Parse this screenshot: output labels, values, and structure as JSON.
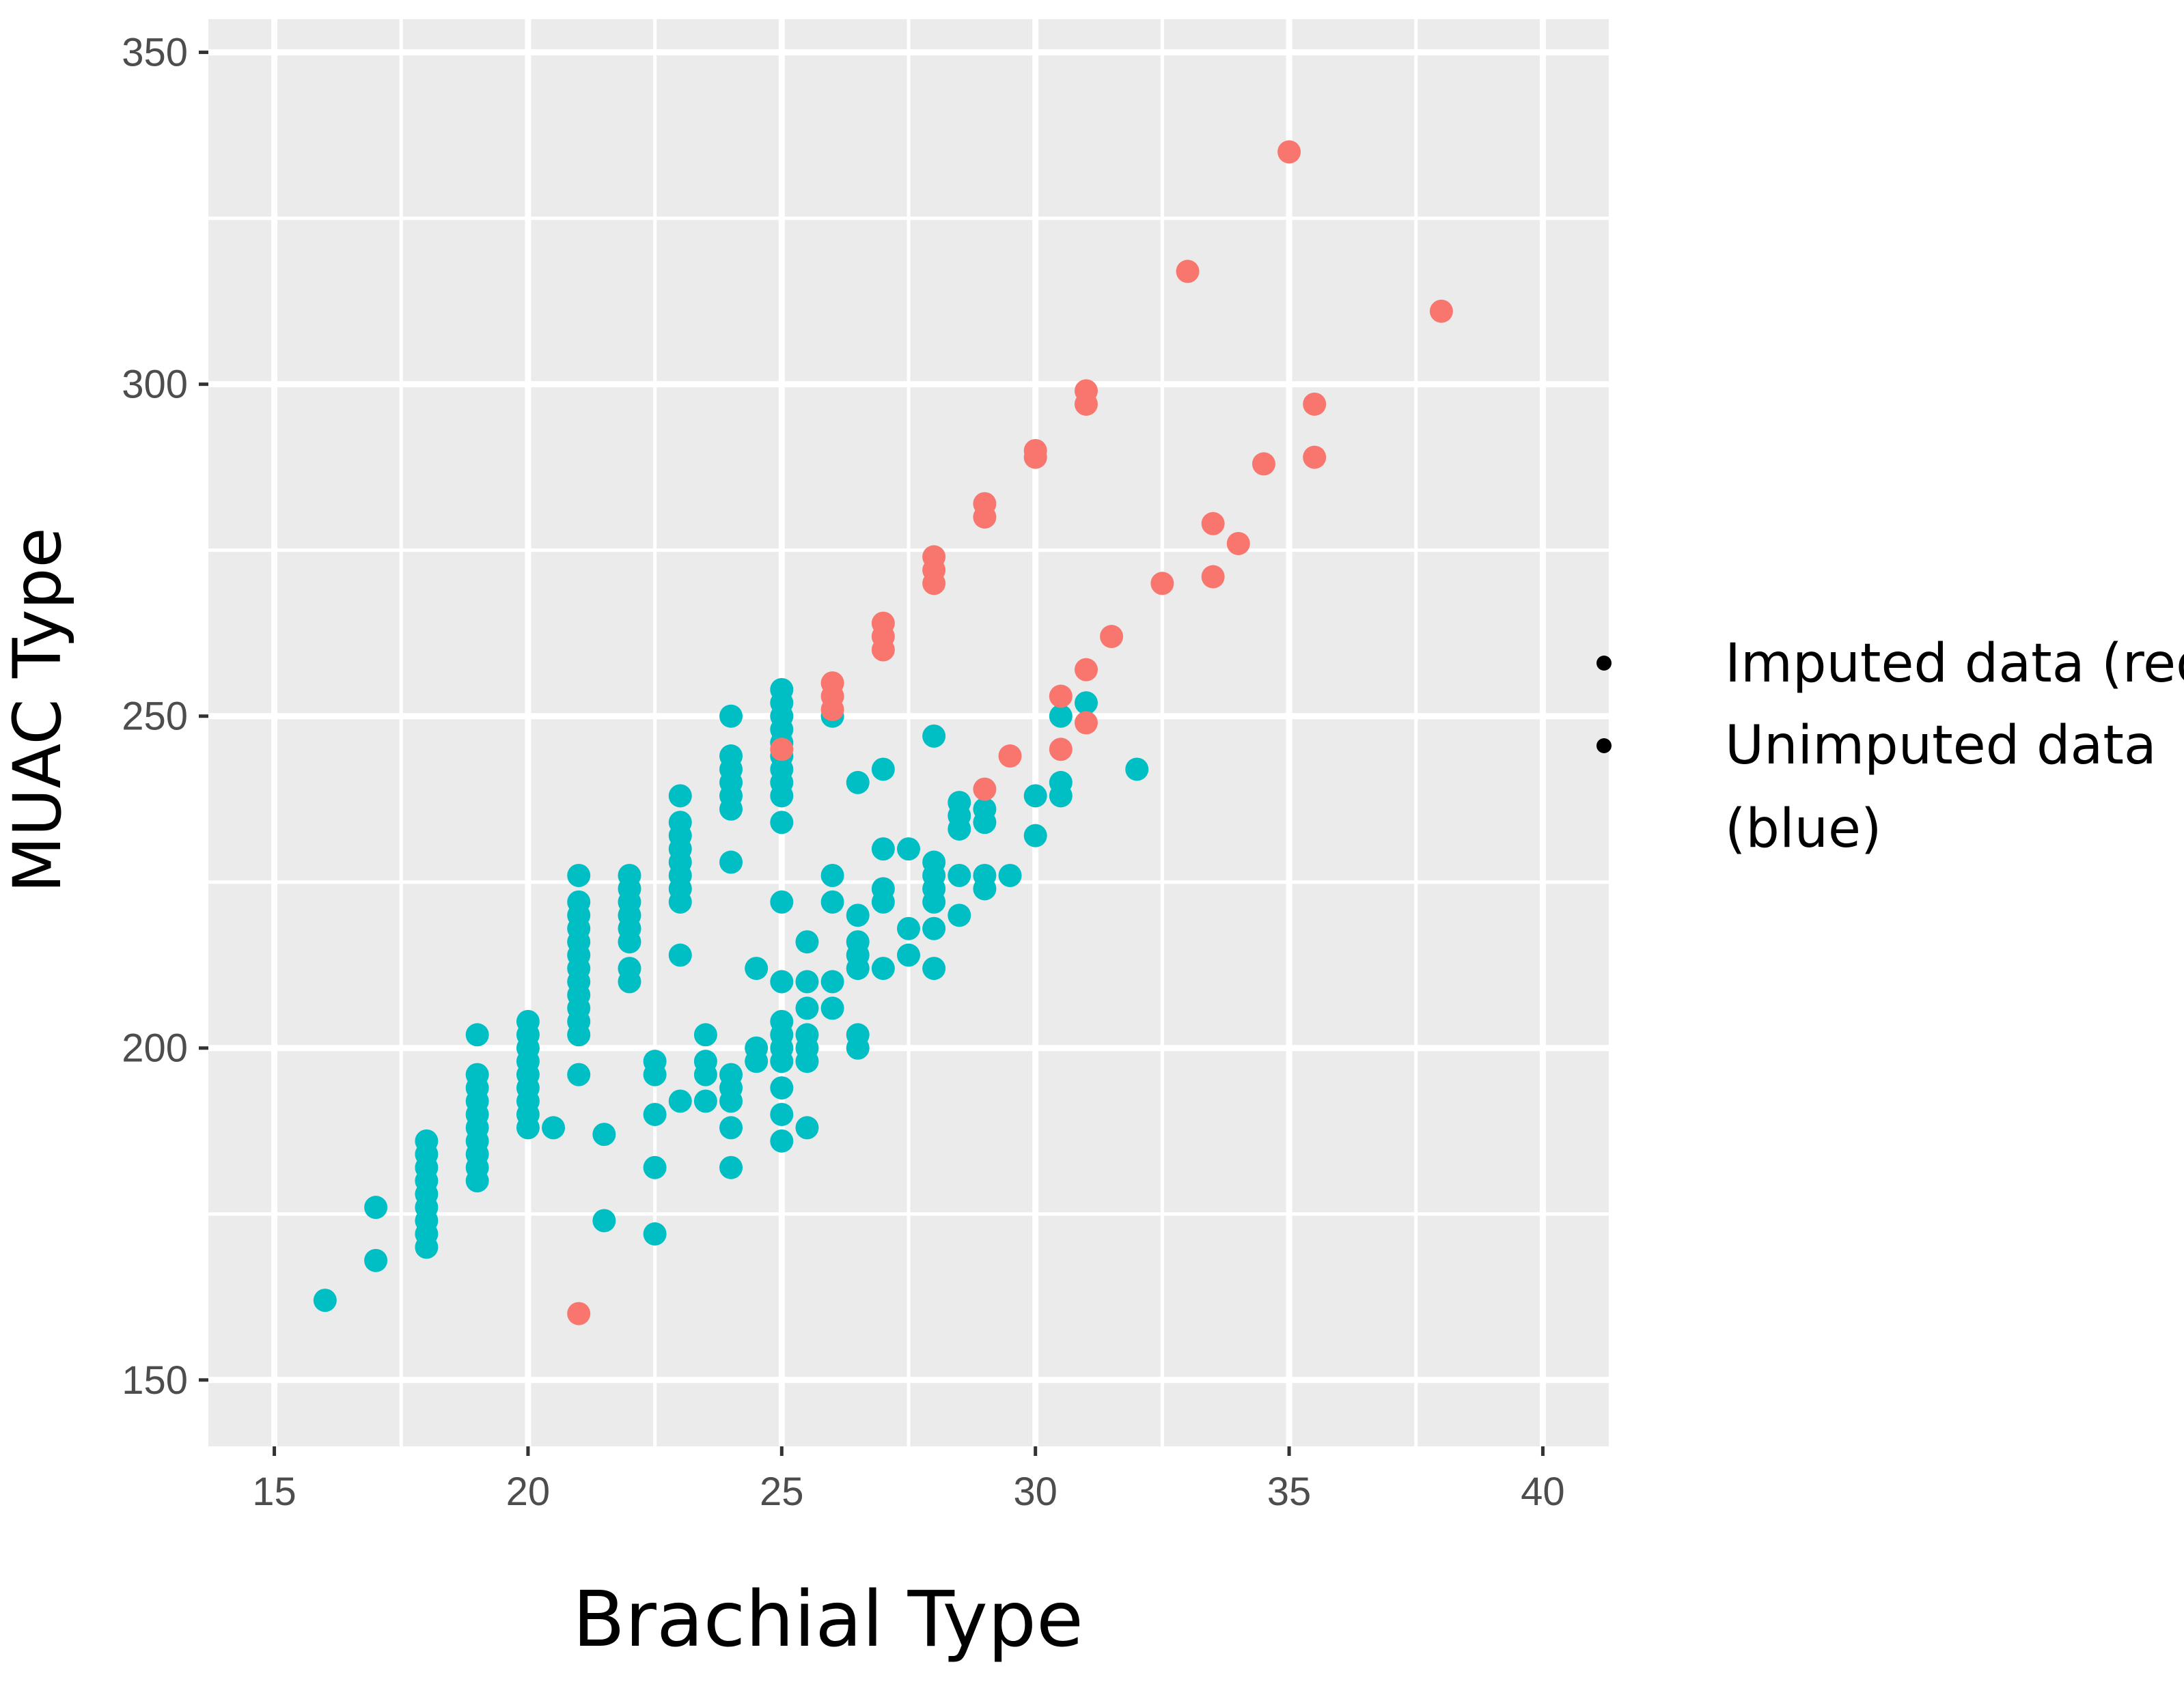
{
  "chart_data": {
    "type": "scatter",
    "xlabel": "Brachial Type",
    "ylabel": "MUAC Type",
    "xlim": [
      13.7,
      41.3
    ],
    "ylim": [
      140,
      355
    ],
    "x_ticks": [
      15,
      20,
      25,
      30,
      35,
      40
    ],
    "y_ticks": [
      150,
      200,
      250,
      300,
      350
    ],
    "grid": true,
    "background": "#ebebeb",
    "legend_placement": "right",
    "legend": [
      {
        "label": "Imputed data (red)",
        "color": "#f8766d"
      },
      {
        "label": "Unimputed data (blue)",
        "color": "#00bfc4"
      }
    ],
    "series": [
      {
        "color": "#00bfc4",
        "points": [
          [
            16,
            162
          ],
          [
            17,
            176
          ],
          [
            17,
            168
          ],
          [
            18,
            186
          ],
          [
            18,
            184
          ],
          [
            18,
            182
          ],
          [
            18,
            180
          ],
          [
            18,
            178
          ],
          [
            18,
            176
          ],
          [
            18,
            174
          ],
          [
            18,
            172
          ],
          [
            18,
            170
          ],
          [
            19,
            202
          ],
          [
            19,
            196
          ],
          [
            19,
            194
          ],
          [
            19,
            192
          ],
          [
            19,
            190
          ],
          [
            19,
            188
          ],
          [
            19,
            186
          ],
          [
            19,
            184
          ],
          [
            19,
            182
          ],
          [
            19,
            180
          ],
          [
            20,
            204
          ],
          [
            20,
            202
          ],
          [
            20,
            200
          ],
          [
            20,
            198
          ],
          [
            20,
            196
          ],
          [
            20,
            194
          ],
          [
            20,
            192
          ],
          [
            20,
            190
          ],
          [
            20,
            188
          ],
          [
            20.5,
            188
          ],
          [
            21,
            226
          ],
          [
            21,
            222
          ],
          [
            21,
            220
          ],
          [
            21,
            218
          ],
          [
            21,
            216
          ],
          [
            21,
            214
          ],
          [
            21,
            212
          ],
          [
            21,
            210
          ],
          [
            21,
            208
          ],
          [
            21,
            206
          ],
          [
            21,
            204
          ],
          [
            21,
            202
          ],
          [
            21,
            196
          ],
          [
            21.5,
            187
          ],
          [
            21.5,
            174
          ],
          [
            22,
            226
          ],
          [
            22,
            224
          ],
          [
            22,
            222
          ],
          [
            22,
            220
          ],
          [
            22,
            218
          ],
          [
            22,
            216
          ],
          [
            22,
            212
          ],
          [
            22,
            210
          ],
          [
            22.5,
            198
          ],
          [
            22.5,
            196
          ],
          [
            22.5,
            190
          ],
          [
            22.5,
            182
          ],
          [
            22.5,
            172
          ],
          [
            23,
            238
          ],
          [
            23,
            234
          ],
          [
            23,
            232
          ],
          [
            23,
            230
          ],
          [
            23,
            228
          ],
          [
            23,
            226
          ],
          [
            23,
            224
          ],
          [
            23,
            222
          ],
          [
            23,
            214
          ],
          [
            23,
            192
          ],
          [
            23.5,
            202
          ],
          [
            23.5,
            198
          ],
          [
            23.5,
            196
          ],
          [
            23.5,
            192
          ],
          [
            24,
            250
          ],
          [
            24,
            244
          ],
          [
            24,
            242
          ],
          [
            24,
            240
          ],
          [
            24,
            238
          ],
          [
            24,
            236
          ],
          [
            24,
            228
          ],
          [
            24,
            196
          ],
          [
            24,
            194
          ],
          [
            24,
            192
          ],
          [
            24,
            188
          ],
          [
            24,
            182
          ],
          [
            24.5,
            212
          ],
          [
            24.5,
            200
          ],
          [
            24.5,
            198
          ],
          [
            25,
            254
          ],
          [
            25,
            252
          ],
          [
            25,
            250
          ],
          [
            25,
            248
          ],
          [
            25,
            246
          ],
          [
            25,
            244
          ],
          [
            25,
            242
          ],
          [
            25,
            240
          ],
          [
            25,
            238
          ],
          [
            25,
            234
          ],
          [
            25,
            222
          ],
          [
            25,
            210
          ],
          [
            25,
            204
          ],
          [
            25,
            202
          ],
          [
            25,
            200
          ],
          [
            25,
            198
          ],
          [
            25,
            194
          ],
          [
            25,
            190
          ],
          [
            25,
            186
          ],
          [
            25.5,
            216
          ],
          [
            25.5,
            210
          ],
          [
            25.5,
            206
          ],
          [
            25.5,
            202
          ],
          [
            25.5,
            200
          ],
          [
            25.5,
            198
          ],
          [
            25.5,
            188
          ],
          [
            26,
            250
          ],
          [
            26,
            226
          ],
          [
            26,
            222
          ],
          [
            26,
            210
          ],
          [
            26,
            206
          ],
          [
            26.5,
            240
          ],
          [
            26.5,
            220
          ],
          [
            26.5,
            216
          ],
          [
            26.5,
            214
          ],
          [
            26.5,
            212
          ],
          [
            26.5,
            202
          ],
          [
            26.5,
            200
          ],
          [
            27,
            242
          ],
          [
            27,
            230
          ],
          [
            27,
            224
          ],
          [
            27,
            222
          ],
          [
            27,
            212
          ],
          [
            27.5,
            230
          ],
          [
            27.5,
            218
          ],
          [
            27.5,
            214
          ],
          [
            28,
            247
          ],
          [
            28,
            228
          ],
          [
            28,
            226
          ],
          [
            28,
            224
          ],
          [
            28,
            222
          ],
          [
            28,
            218
          ],
          [
            28,
            212
          ],
          [
            28.5,
            237
          ],
          [
            28.5,
            235
          ],
          [
            28.5,
            233
          ],
          [
            28.5,
            226
          ],
          [
            28.5,
            220
          ],
          [
            29,
            236
          ],
          [
            29,
            234
          ],
          [
            29,
            226
          ],
          [
            29,
            224
          ],
          [
            29.5,
            226
          ],
          [
            30,
            238
          ],
          [
            30,
            232
          ],
          [
            30.5,
            250
          ],
          [
            30.5,
            240
          ],
          [
            30.5,
            238
          ],
          [
            31,
            252
          ],
          [
            32,
            242
          ]
        ]
      },
      {
        "color": "#f8766d",
        "points": [
          [
            21,
            160
          ],
          [
            25,
            245
          ],
          [
            26,
            255
          ],
          [
            26,
            253
          ],
          [
            26,
            251
          ],
          [
            27,
            264
          ],
          [
            27,
            262
          ],
          [
            27,
            260
          ],
          [
            28,
            274
          ],
          [
            28,
            272
          ],
          [
            28,
            270
          ],
          [
            29,
            282
          ],
          [
            29,
            280
          ],
          [
            29,
            239
          ],
          [
            29.5,
            244
          ],
          [
            30,
            290
          ],
          [
            30,
            289
          ],
          [
            30.5,
            253
          ],
          [
            30.5,
            245
          ],
          [
            31,
            299
          ],
          [
            31,
            297
          ],
          [
            31,
            257
          ],
          [
            31,
            249
          ],
          [
            31.5,
            262
          ],
          [
            32.5,
            270
          ],
          [
            33,
            317
          ],
          [
            33.5,
            279
          ],
          [
            33.5,
            271
          ],
          [
            34,
            276
          ],
          [
            34.5,
            288
          ],
          [
            35,
            335
          ],
          [
            35.5,
            297
          ],
          [
            35.5,
            289
          ],
          [
            38,
            311
          ]
        ]
      }
    ]
  }
}
